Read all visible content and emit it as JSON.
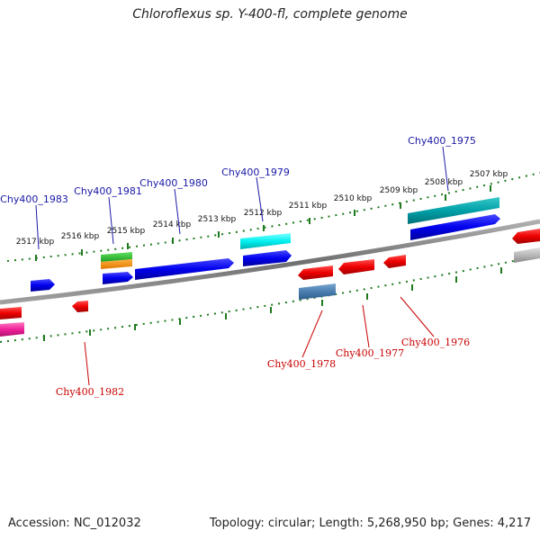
{
  "title": "Chloroflexus sp. Y-400-fl, complete genome",
  "footer": {
    "accession": "Accession: NC_012032",
    "summary": "Topology: circular; Length: 5,268,950 bp; Genes: 4,217"
  },
  "kbp_labels": [
    "2517 kbp",
    "2516 kbp",
    "2515 kbp",
    "2514 kbp",
    "2513 kbp",
    "2512 kbp",
    "2511 kbp",
    "2510 kbp",
    "2509 kbp",
    "2508 kbp",
    "2507 kbp"
  ],
  "forward_gene_labels": [
    "Chy400_1983",
    "Chy400_1981",
    "Chy400_1980",
    "Chy400_1979",
    "Chy400_1975"
  ],
  "reverse_gene_labels": [
    "Chy400_1982",
    "Chy400_1978",
    "Chy400_1977",
    "Chy400_1976"
  ],
  "colors": {
    "forward_label": "#1a1aa6",
    "reverse_label": "#c80000",
    "tick": "#1f7a1f",
    "backbone": "#808080"
  }
}
